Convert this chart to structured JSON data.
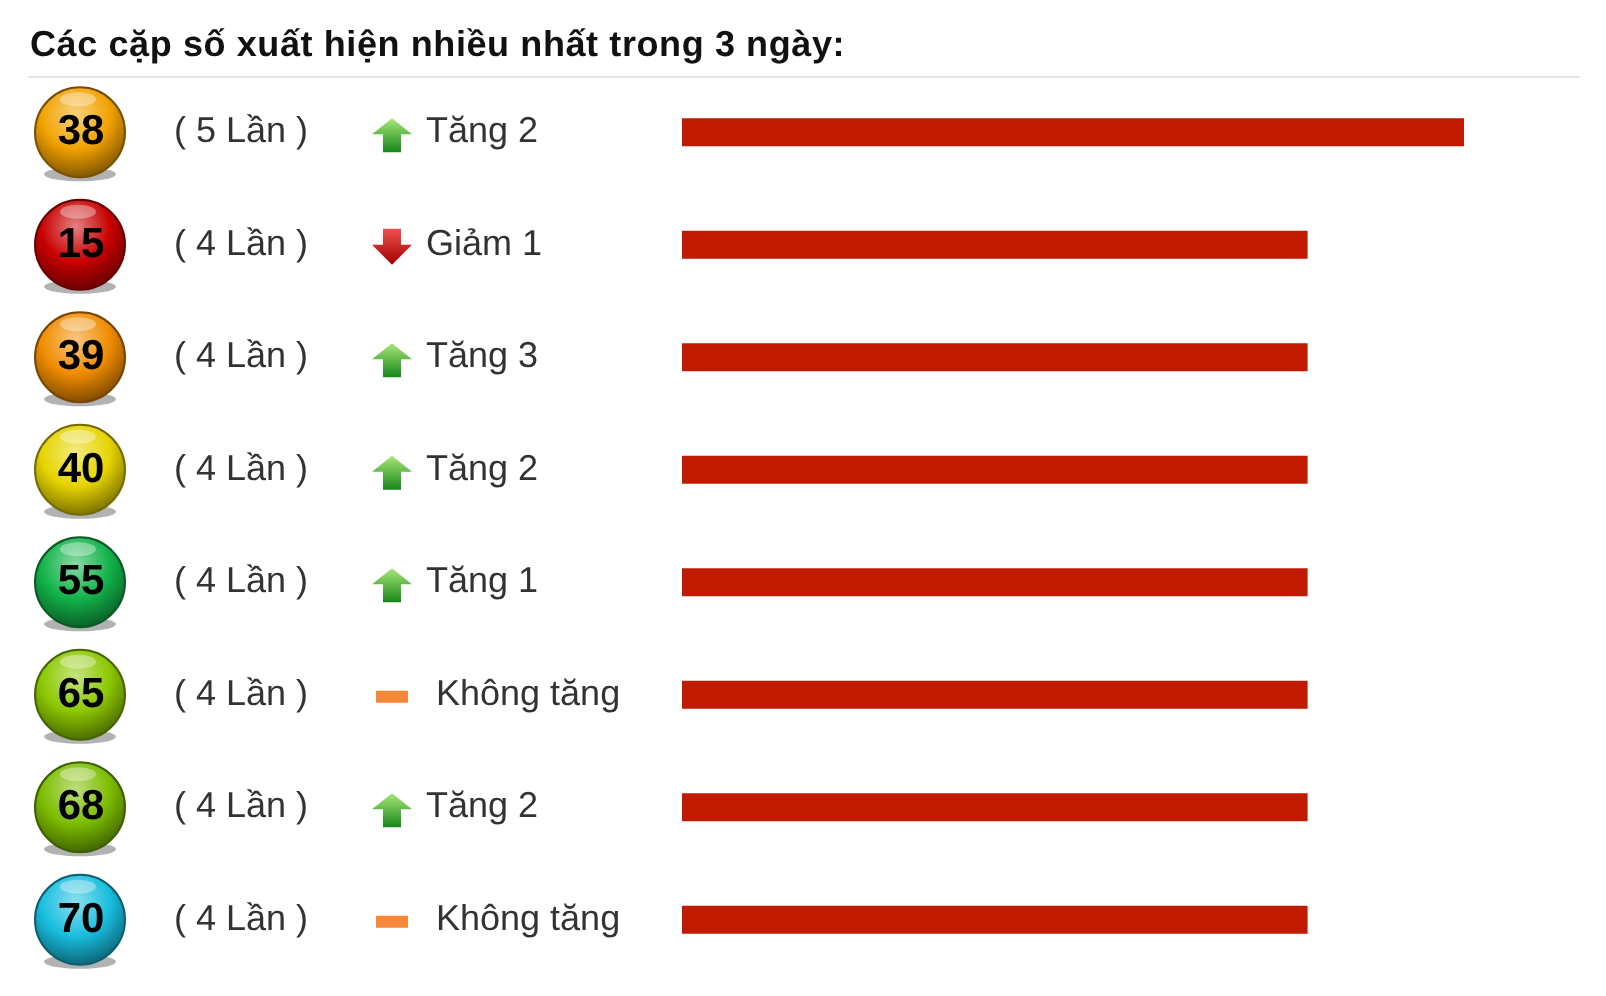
{
  "chart_data": {
    "type": "bar",
    "orientation": "horizontal",
    "title": "Các cặp số xuất hiện nhiều nhất trong 3 ngày:",
    "categories": [
      "38",
      "15",
      "39",
      "40",
      "55",
      "65",
      "68",
      "70"
    ],
    "values": [
      5,
      4,
      4,
      4,
      4,
      4,
      4,
      4
    ],
    "value_labels": [
      "( 5 Lần )",
      "( 4 Lần )",
      "( 4 Lần )",
      "( 4 Lần )",
      "( 4 Lần )",
      "( 4 Lần )",
      "( 4 Lần )",
      "( 4 Lần )"
    ],
    "color": "#c01a00",
    "annotations": [
      "Tăng 2",
      "Giảm 1",
      "Tăng 3",
      "Tăng 2",
      "Tăng 1",
      "Không tăng",
      "Tăng 2",
      "Không tăng"
    ],
    "tick_labels": "y"
  }
}
